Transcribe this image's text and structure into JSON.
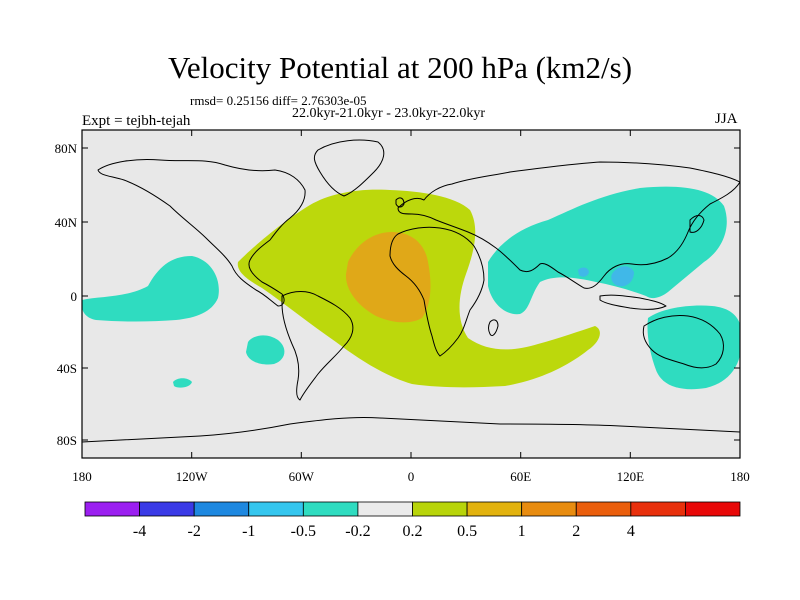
{
  "title": "Velocity Potential at 200 hPa (km2/s)",
  "stats": "rmsd= 0.25156 diff= 2.76303e-05",
  "period": "22.0kyr-21.0kyr - 23.0kyr-22.0kyr",
  "experiment": "Expt = tejbh-tejah",
  "season": "JJA",
  "map": {
    "lat_labels": [
      "80N",
      "40N",
      "0",
      "40S",
      "80S"
    ],
    "lon_labels": [
      "180",
      "120W",
      "60W",
      "0",
      "60E",
      "120E",
      "180"
    ],
    "land_color": "#e8e8e8"
  },
  "colorbar": {
    "colors": [
      "#9b1ff0",
      "#3a3ae6",
      "#1e88e0",
      "#35c6ee",
      "#2fdcc0",
      "#ebebeb",
      "#b8d40a",
      "#e2b20e",
      "#e88c10",
      "#ea5e0c",
      "#e8300c",
      "#e80808"
    ],
    "labels": [
      "-4",
      "-2",
      "-1",
      "-0.5",
      "-0.2",
      "0.2",
      "0.5",
      "1",
      "2",
      "4"
    ]
  },
  "field_colors": {
    "positive_0_5": "#bcd80c",
    "positive_1": "#e0a818",
    "negative_0_2": "#2fdcc0",
    "negative_0_5": "#40b8e8"
  }
}
